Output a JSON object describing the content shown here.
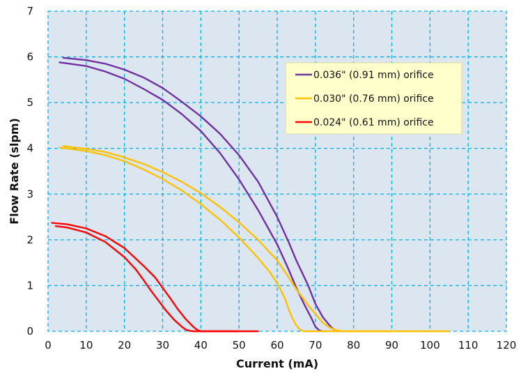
{
  "chart_data": {
    "type": "line",
    "title": "",
    "xlabel": "Current (mA)",
    "ylabel": "Flow Rate (slpm)",
    "xlim": [
      0,
      120
    ],
    "ylim": [
      0,
      7
    ],
    "x_ticks": [
      0,
      10,
      20,
      30,
      40,
      50,
      60,
      70,
      80,
      90,
      100,
      110,
      120
    ],
    "y_ticks": [
      0,
      1,
      2,
      3,
      4,
      5,
      6,
      7
    ],
    "grid": true,
    "legend_position": "top-right",
    "colors": {
      "plot_bg": "#dce6f1",
      "grid": "#00b0f0",
      "legend_bg": "#ffffcc"
    },
    "series": [
      {
        "name": "0.036\" (0.91 mm) orifice",
        "color": "#7030a0",
        "upper": [
          [
            4,
            5.98
          ],
          [
            10,
            5.93
          ],
          [
            15,
            5.85
          ],
          [
            20,
            5.72
          ],
          [
            25,
            5.55
          ],
          [
            30,
            5.32
          ],
          [
            35,
            5.02
          ],
          [
            40,
            4.7
          ],
          [
            45,
            4.32
          ],
          [
            50,
            3.85
          ],
          [
            55,
            3.27
          ],
          [
            60,
            2.5
          ],
          [
            63,
            1.95
          ],
          [
            65,
            1.55
          ],
          [
            68,
            1.02
          ],
          [
            70,
            0.6
          ],
          [
            72,
            0.3
          ],
          [
            74,
            0.1
          ],
          [
            75,
            0.03
          ],
          [
            76,
            0
          ]
        ],
        "lower": [
          [
            3,
            5.88
          ],
          [
            10,
            5.8
          ],
          [
            15,
            5.68
          ],
          [
            20,
            5.52
          ],
          [
            25,
            5.3
          ],
          [
            30,
            5.06
          ],
          [
            35,
            4.75
          ],
          [
            40,
            4.38
          ],
          [
            45,
            3.9
          ],
          [
            50,
            3.32
          ],
          [
            55,
            2.65
          ],
          [
            60,
            1.9
          ],
          [
            63,
            1.35
          ],
          [
            65,
            0.95
          ],
          [
            67,
            0.6
          ],
          [
            69,
            0.28
          ],
          [
            70,
            0.1
          ],
          [
            71,
            0.02
          ],
          [
            72,
            0
          ]
        ]
      },
      {
        "name": "0.030\" (0.76 mm) orifice",
        "color": "#ffc000",
        "upper": [
          [
            4,
            4.05
          ],
          [
            10,
            3.99
          ],
          [
            15,
            3.92
          ],
          [
            20,
            3.8
          ],
          [
            25,
            3.66
          ],
          [
            30,
            3.48
          ],
          [
            35,
            3.27
          ],
          [
            40,
            3.02
          ],
          [
            45,
            2.72
          ],
          [
            50,
            2.38
          ],
          [
            55,
            2.0
          ],
          [
            60,
            1.55
          ],
          [
            63,
            1.18
          ],
          [
            65,
            0.92
          ],
          [
            68,
            0.58
          ],
          [
            70,
            0.38
          ],
          [
            72,
            0.18
          ],
          [
            74,
            0.07
          ],
          [
            76,
            0.01
          ],
          [
            78,
            0
          ],
          [
            105,
            0
          ]
        ],
        "lower": [
          [
            3,
            4.02
          ],
          [
            10,
            3.94
          ],
          [
            15,
            3.85
          ],
          [
            20,
            3.72
          ],
          [
            25,
            3.54
          ],
          [
            30,
            3.33
          ],
          [
            35,
            3.08
          ],
          [
            40,
            2.78
          ],
          [
            45,
            2.44
          ],
          [
            50,
            2.05
          ],
          [
            55,
            1.6
          ],
          [
            58,
            1.3
          ],
          [
            60,
            1.05
          ],
          [
            62,
            0.72
          ],
          [
            63,
            0.48
          ],
          [
            64,
            0.28
          ],
          [
            65,
            0.13
          ],
          [
            66,
            0.03
          ],
          [
            67,
            0
          ],
          [
            90,
            0
          ]
        ]
      },
      {
        "name": "0.024\" (0.61 mm) orifice",
        "color": "#ff0000",
        "upper": [
          [
            1,
            2.37
          ],
          [
            5,
            2.34
          ],
          [
            10,
            2.25
          ],
          [
            15,
            2.08
          ],
          [
            20,
            1.82
          ],
          [
            25,
            1.43
          ],
          [
            28,
            1.18
          ],
          [
            30,
            0.95
          ],
          [
            32,
            0.72
          ],
          [
            34,
            0.48
          ],
          [
            36,
            0.27
          ],
          [
            38,
            0.1
          ],
          [
            39,
            0.03
          ],
          [
            40,
            0
          ],
          [
            55,
            0
          ]
        ],
        "lower": [
          [
            2,
            2.3
          ],
          [
            5,
            2.27
          ],
          [
            10,
            2.16
          ],
          [
            15,
            1.95
          ],
          [
            20,
            1.62
          ],
          [
            23,
            1.35
          ],
          [
            25,
            1.12
          ],
          [
            27,
            0.88
          ],
          [
            29,
            0.66
          ],
          [
            31,
            0.44
          ],
          [
            33,
            0.25
          ],
          [
            35,
            0.1
          ],
          [
            36,
            0.04
          ],
          [
            37,
            0.01
          ],
          [
            38,
            0
          ],
          [
            50,
            0
          ]
        ]
      }
    ]
  }
}
